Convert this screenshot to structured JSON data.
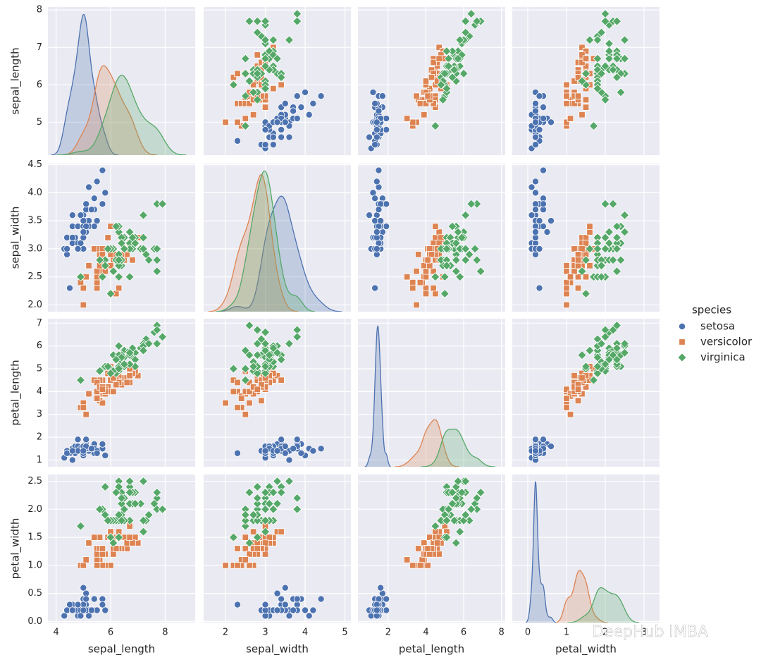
{
  "chart_data": {
    "type": "pairplot",
    "diag": "kde",
    "grid": true,
    "legend_title": "species",
    "legend_loc": "right",
    "variables": [
      "sepal_length",
      "sepal_width",
      "petal_length",
      "petal_width"
    ],
    "axes": [
      {
        "xlim": [
          3.7,
          9.1
        ],
        "ylim": [
          4.12,
          8.08
        ],
        "xticks": [
          4,
          6,
          8
        ],
        "yticks": [
          5,
          6,
          7,
          8
        ]
      },
      {
        "xlim": [
          1.45,
          5.15
        ],
        "ylim": [
          1.88,
          4.52
        ],
        "xticks": [
          2,
          3,
          4,
          5
        ],
        "yticks": [
          {
            "value": 2.0,
            "label": "2.0"
          },
          {
            "value": 2.5,
            "label": "2.5"
          },
          {
            "value": 3.0,
            "label": "3.0"
          },
          {
            "value": 3.5,
            "label": "3.5"
          },
          {
            "value": 4.0,
            "label": "4.0"
          },
          {
            "value": 4.5,
            "label": "4.5"
          }
        ]
      },
      {
        "xlim": [
          0.4,
          8.2
        ],
        "ylim": [
          0.705,
          7.195
        ],
        "xticks": [
          2,
          4,
          6,
          8
        ],
        "yticks": [
          1,
          2,
          3,
          4,
          5,
          6,
          7
        ]
      },
      {
        "xlim": [
          -0.4,
          3.4
        ],
        "ylim": [
          -0.02,
          2.62
        ],
        "xticks": [
          0,
          1,
          2,
          3
        ],
        "yticks": [
          {
            "value": 0.0,
            "label": "0.0"
          },
          {
            "value": 0.5,
            "label": "0.5"
          },
          {
            "value": 1.0,
            "label": "1.0"
          },
          {
            "value": 1.5,
            "label": "1.5"
          },
          {
            "value": 2.0,
            "label": "2.0"
          },
          {
            "value": 2.5,
            "label": "2.5"
          }
        ]
      }
    ],
    "series": [
      {
        "name": "setosa",
        "color": "#4c72b0",
        "marker": "circle",
        "values": [
          [
            5.1,
            4.9,
            4.7,
            4.6,
            5.0,
            5.4,
            4.6,
            5.0,
            4.4,
            4.9,
            5.4,
            4.8,
            4.8,
            4.3,
            5.8,
            5.7,
            5.4,
            5.1,
            5.7,
            5.1,
            5.4,
            5.1,
            4.6,
            5.1,
            4.8,
            5.0,
            5.0,
            5.2,
            5.2,
            4.7,
            4.8,
            5.4,
            5.2,
            5.5,
            4.9,
            5.0,
            5.5,
            4.9,
            4.4,
            5.1,
            5.0,
            4.5,
            4.4,
            5.0,
            5.1,
            4.8,
            5.1,
            4.6,
            5.3,
            5.0
          ],
          [
            3.5,
            3.0,
            3.2,
            3.1,
            3.6,
            3.9,
            3.4,
            3.4,
            2.9,
            3.1,
            3.7,
            3.4,
            3.0,
            3.0,
            4.0,
            4.4,
            3.9,
            3.5,
            3.8,
            3.8,
            3.4,
            3.7,
            3.6,
            3.3,
            3.4,
            3.0,
            3.4,
            3.5,
            3.4,
            3.2,
            3.1,
            3.4,
            4.1,
            4.2,
            3.1,
            3.2,
            3.5,
            3.6,
            3.0,
            3.4,
            3.5,
            2.3,
            3.2,
            3.5,
            3.8,
            3.0,
            3.8,
            3.2,
            3.7,
            3.3
          ],
          [
            1.4,
            1.4,
            1.3,
            1.5,
            1.4,
            1.7,
            1.4,
            1.5,
            1.4,
            1.5,
            1.5,
            1.6,
            1.4,
            1.1,
            1.2,
            1.5,
            1.3,
            1.4,
            1.7,
            1.5,
            1.7,
            1.5,
            1.0,
            1.7,
            1.9,
            1.6,
            1.6,
            1.5,
            1.4,
            1.6,
            1.6,
            1.5,
            1.5,
            1.4,
            1.5,
            1.2,
            1.3,
            1.4,
            1.3,
            1.5,
            1.3,
            1.3,
            1.3,
            1.6,
            1.9,
            1.4,
            1.6,
            1.4,
            1.5,
            1.4
          ],
          [
            0.2,
            0.2,
            0.2,
            0.2,
            0.2,
            0.4,
            0.3,
            0.2,
            0.2,
            0.1,
            0.2,
            0.2,
            0.1,
            0.1,
            0.2,
            0.4,
            0.4,
            0.3,
            0.3,
            0.3,
            0.2,
            0.4,
            0.2,
            0.5,
            0.2,
            0.2,
            0.4,
            0.2,
            0.2,
            0.2,
            0.2,
            0.4,
            0.1,
            0.2,
            0.2,
            0.2,
            0.2,
            0.1,
            0.2,
            0.2,
            0.3,
            0.3,
            0.2,
            0.6,
            0.4,
            0.3,
            0.2,
            0.2,
            0.2,
            0.2
          ]
        ]
      },
      {
        "name": "versicolor",
        "color": "#dd8452",
        "marker": "square",
        "values": [
          [
            7.0,
            6.4,
            6.9,
            5.5,
            6.5,
            5.7,
            6.3,
            4.9,
            6.6,
            5.2,
            5.0,
            5.9,
            6.0,
            6.1,
            5.6,
            6.7,
            5.6,
            5.8,
            6.2,
            5.6,
            5.9,
            6.1,
            6.3,
            6.1,
            6.4,
            6.6,
            6.8,
            6.7,
            6.0,
            5.7,
            5.5,
            5.5,
            5.8,
            6.0,
            5.4,
            6.0,
            6.7,
            6.3,
            5.6,
            5.5,
            5.5,
            6.1,
            5.8,
            5.0,
            5.6,
            5.7,
            5.7,
            6.2,
            5.1,
            5.7
          ],
          [
            3.2,
            3.2,
            3.1,
            2.3,
            2.8,
            2.8,
            3.3,
            2.4,
            2.9,
            2.7,
            2.0,
            3.0,
            2.2,
            2.9,
            2.9,
            3.1,
            3.0,
            2.7,
            2.2,
            2.5,
            3.2,
            2.8,
            2.5,
            2.8,
            2.9,
            3.0,
            2.8,
            3.0,
            2.9,
            2.6,
            2.4,
            2.4,
            2.7,
            2.7,
            3.0,
            3.4,
            3.1,
            2.3,
            3.0,
            2.5,
            2.6,
            3.0,
            2.6,
            2.3,
            2.7,
            3.0,
            2.9,
            2.9,
            2.5,
            2.8
          ],
          [
            4.7,
            4.5,
            4.9,
            4.0,
            4.6,
            4.5,
            4.7,
            3.3,
            4.6,
            3.9,
            3.5,
            4.2,
            4.0,
            4.7,
            3.6,
            4.4,
            4.5,
            4.1,
            4.5,
            3.9,
            4.8,
            4.0,
            4.9,
            4.7,
            4.3,
            4.4,
            4.8,
            5.0,
            4.5,
            3.5,
            3.8,
            3.7,
            3.9,
            5.1,
            4.5,
            4.5,
            4.7,
            4.4,
            4.1,
            4.0,
            4.4,
            4.6,
            4.0,
            3.3,
            4.2,
            4.2,
            4.2,
            4.3,
            3.0,
            4.1
          ],
          [
            1.4,
            1.5,
            1.5,
            1.3,
            1.5,
            1.3,
            1.6,
            1.0,
            1.3,
            1.4,
            1.0,
            1.5,
            1.0,
            1.4,
            1.3,
            1.4,
            1.5,
            1.0,
            1.5,
            1.1,
            1.8,
            1.3,
            1.5,
            1.2,
            1.3,
            1.4,
            1.4,
            1.7,
            1.5,
            1.0,
            1.1,
            1.0,
            1.2,
            1.6,
            1.5,
            1.6,
            1.5,
            1.3,
            1.3,
            1.3,
            1.2,
            1.4,
            1.2,
            1.0,
            1.3,
            1.2,
            1.3,
            1.3,
            1.1,
            1.3
          ]
        ]
      },
      {
        "name": "virginica",
        "color": "#55a868",
        "marker": "diamond",
        "values": [
          [
            6.3,
            5.8,
            7.1,
            6.3,
            6.5,
            7.6,
            4.9,
            7.3,
            6.7,
            7.2,
            6.5,
            6.4,
            6.8,
            5.7,
            5.8,
            6.4,
            6.5,
            7.7,
            7.7,
            6.0,
            6.9,
            5.6,
            7.7,
            6.3,
            6.7,
            7.2,
            6.2,
            6.1,
            6.4,
            7.2,
            7.4,
            7.9,
            6.4,
            6.3,
            6.1,
            7.7,
            6.3,
            6.4,
            6.0,
            6.9,
            6.7,
            6.9,
            5.8,
            6.8,
            6.7,
            6.7,
            6.3,
            6.5,
            6.2,
            5.9
          ],
          [
            3.3,
            2.7,
            3.0,
            2.9,
            3.0,
            3.0,
            2.5,
            2.9,
            2.5,
            3.6,
            3.2,
            2.7,
            3.0,
            2.5,
            2.8,
            3.2,
            3.0,
            3.8,
            2.6,
            2.2,
            3.2,
            2.8,
            2.8,
            2.7,
            3.3,
            3.2,
            2.8,
            3.0,
            2.8,
            3.0,
            2.8,
            3.8,
            2.8,
            2.8,
            2.6,
            3.0,
            3.4,
            3.1,
            3.0,
            3.1,
            3.1,
            3.1,
            2.7,
            3.2,
            3.3,
            3.0,
            2.5,
            3.0,
            3.4,
            3.0
          ],
          [
            6.0,
            5.1,
            5.9,
            5.6,
            5.8,
            6.6,
            4.5,
            6.3,
            5.8,
            6.1,
            5.1,
            5.3,
            5.5,
            5.0,
            5.1,
            5.3,
            5.5,
            6.7,
            6.9,
            5.0,
            5.7,
            4.9,
            6.7,
            4.9,
            5.7,
            6.0,
            4.8,
            4.9,
            5.6,
            5.8,
            6.1,
            6.4,
            5.6,
            5.1,
            5.6,
            6.1,
            5.6,
            5.5,
            4.8,
            5.4,
            5.6,
            5.1,
            5.1,
            5.9,
            5.7,
            5.2,
            5.0,
            5.2,
            5.4,
            5.1
          ],
          [
            2.5,
            1.9,
            2.1,
            1.8,
            2.2,
            2.1,
            1.7,
            1.8,
            1.8,
            2.5,
            2.0,
            1.9,
            2.1,
            2.0,
            2.4,
            2.3,
            1.8,
            2.2,
            2.3,
            1.5,
            2.3,
            2.0,
            2.0,
            1.8,
            2.1,
            1.8,
            1.8,
            1.8,
            2.1,
            1.6,
            1.9,
            2.0,
            2.2,
            1.5,
            1.4,
            2.3,
            2.4,
            1.8,
            1.8,
            2.1,
            2.4,
            2.3,
            1.9,
            2.3,
            2.5,
            2.3,
            1.9,
            2.0,
            2.3,
            1.8
          ]
        ]
      }
    ]
  },
  "watermark": "DeepHub IMBA"
}
